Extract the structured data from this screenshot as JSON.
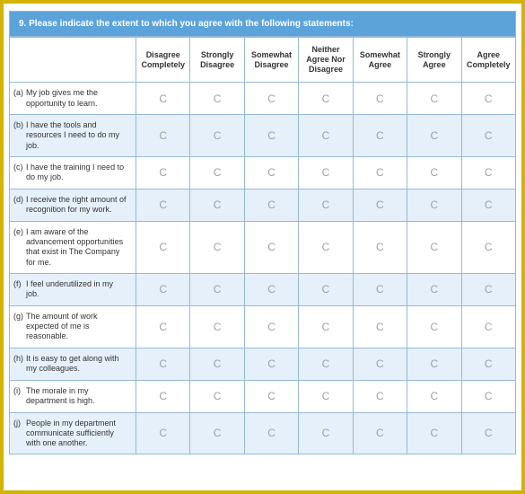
{
  "question_header": "9.  Please indicate the extent to which you agree with the following statements:",
  "columns": [
    "Disagree Completely",
    "Strongly Disagree",
    "Somewhat Disagree",
    "Neither Agree Nor Disagree",
    "Somewhat Agree",
    "Strongly Agree",
    "Agree Completely"
  ],
  "rows": [
    {
      "id": "(a)",
      "text": "My job gives me the opportunity to learn."
    },
    {
      "id": "(b)",
      "text": "I have the tools and resources I need to do my job."
    },
    {
      "id": "(c)",
      "text": "I have the training I need to do my job."
    },
    {
      "id": "(d)",
      "text": "I receive the right amount of recognition for my work."
    },
    {
      "id": "(e)",
      "text": "I am aware of the advancement opportunities that exist in The Company for me."
    },
    {
      "id": "(f)",
      "text": "I feel underutilized in my job."
    },
    {
      "id": "(g)",
      "text": "The amount of work expected of me is reasonable."
    },
    {
      "id": "(h)",
      "text": "It is easy to get along with my colleagues."
    },
    {
      "id": "(i)",
      "text": "The morale in my department is high."
    },
    {
      "id": "(j)",
      "text": "People in my department communicate sufficiently with one another."
    }
  ],
  "colors": {
    "frame_border": "#d4b300",
    "header_bg": "#5ba3d8",
    "cell_border": "#95b9d6",
    "alt_row_bg": "#e5f0fa",
    "radio_color": "#9ea0a2"
  },
  "radio_glyph": "C"
}
